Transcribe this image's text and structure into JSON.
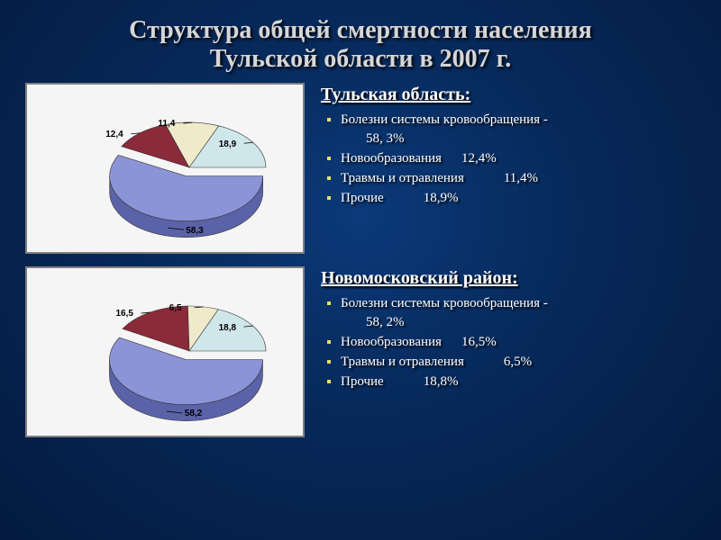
{
  "title_line1": "Структура общей смертности населения",
  "title_line2": "Тульской области в 2007 г.",
  "bullet_marker_color": "#e8e05a",
  "background": {
    "type": "radial-gradient",
    "center_color": "#0b3a7a",
    "mid_color": "#072a5c",
    "edge_color": "#041a3e"
  },
  "text_color": "#ffffff",
  "title_color": "#d6d6d6",
  "font_family": "Times New Roman",
  "charts": [
    {
      "type": "pie-3d",
      "region": "Тульская область:",
      "background_color": "#f5f5f5",
      "border_color": "#808080",
      "exploded_slice_index": 0,
      "label_fontsize": 10,
      "slices": [
        {
          "label": "58,3",
          "value": 58.3,
          "fill_top": "#8a94d6",
          "fill_side": "#5a63a8",
          "item": "Болезни системы кровообращения -",
          "pct": "58, 3%"
        },
        {
          "label": "12,4",
          "value": 12.4,
          "fill_top": "#8a2a3a",
          "fill_side": "#5a1a28",
          "item": "Новообразования",
          "pct": "12,4%"
        },
        {
          "label": "11,4",
          "value": 11.4,
          "fill_top": "#f0eacb",
          "fill_side": "#c8c2a0",
          "item": "Травмы и отравления",
          "pct": "11,4%"
        },
        {
          "label": "18,9",
          "value": 18.9,
          "fill_top": "#cfe6ea",
          "fill_side": "#9ab8bc",
          "item": "Прочие",
          "pct": "18,9%"
        }
      ]
    },
    {
      "type": "pie-3d",
      "region": "Новомосковский район:",
      "background_color": "#f5f5f5",
      "border_color": "#808080",
      "exploded_slice_index": 0,
      "label_fontsize": 10,
      "slices": [
        {
          "label": "58,2",
          "value": 58.2,
          "fill_top": "#8a94d6",
          "fill_side": "#5a63a8",
          "item": "Болезни системы кровообращения -",
          "pct": "58, 2%"
        },
        {
          "label": "16,5",
          "value": 16.5,
          "fill_top": "#8a2a3a",
          "fill_side": "#5a1a28",
          "item": "Новообразования",
          "pct": "16,5%"
        },
        {
          "label": "6,5",
          "value": 6.5,
          "fill_top": "#f0eacb",
          "fill_side": "#c8c2a0",
          "item": "Травмы и отравления",
          "pct": "6,5%"
        },
        {
          "label": "18,8",
          "value": 18.8,
          "fill_top": "#cfe6ea",
          "fill_side": "#9ab8bc",
          "item": "Прочие",
          "pct": "18,8%"
        }
      ]
    }
  ]
}
